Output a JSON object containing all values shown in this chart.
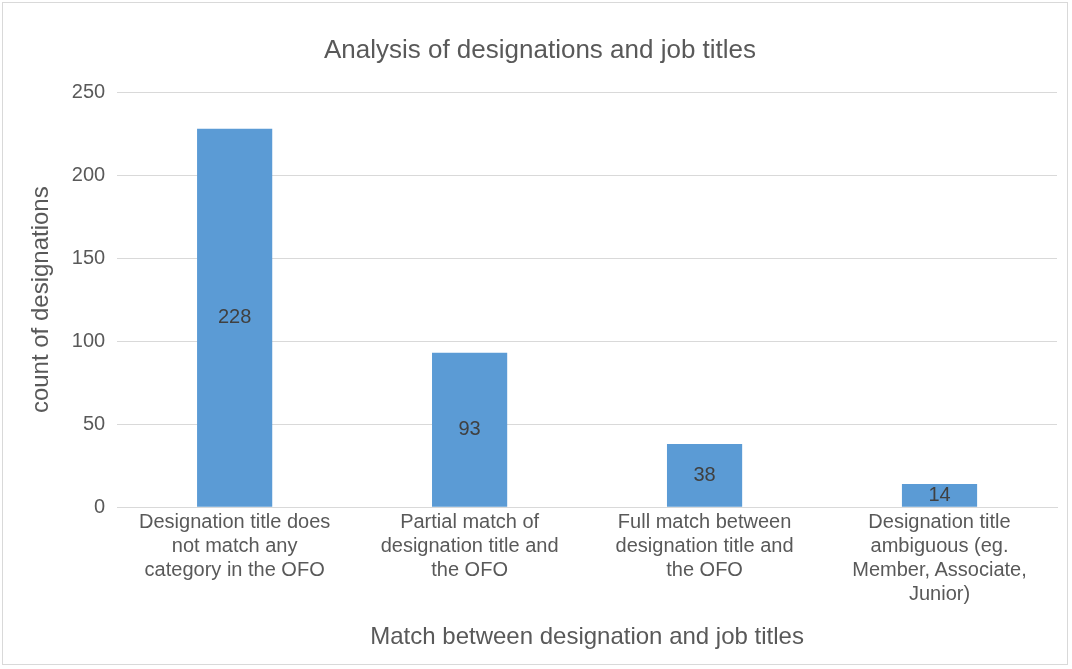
{
  "chart_data": {
    "type": "bar",
    "title": "Analysis of designations and job titles",
    "xlabel": "Match between designation and job titles",
    "ylabel": "count of designations",
    "categories": [
      "Designation title does not match any category in the OFO",
      "Partial match of designation title and the OFO",
      "Full match between designation title and the OFO",
      "Designation title ambiguous (eg. Member, Associate, Junior)"
    ],
    "values": [
      228,
      93,
      38,
      14
    ],
    "color": "#5b9bd5",
    "ylim": [
      0,
      250
    ],
    "yticks": [
      0,
      50,
      100,
      150,
      200,
      250
    ],
    "grid": "y",
    "data_labels": true
  }
}
